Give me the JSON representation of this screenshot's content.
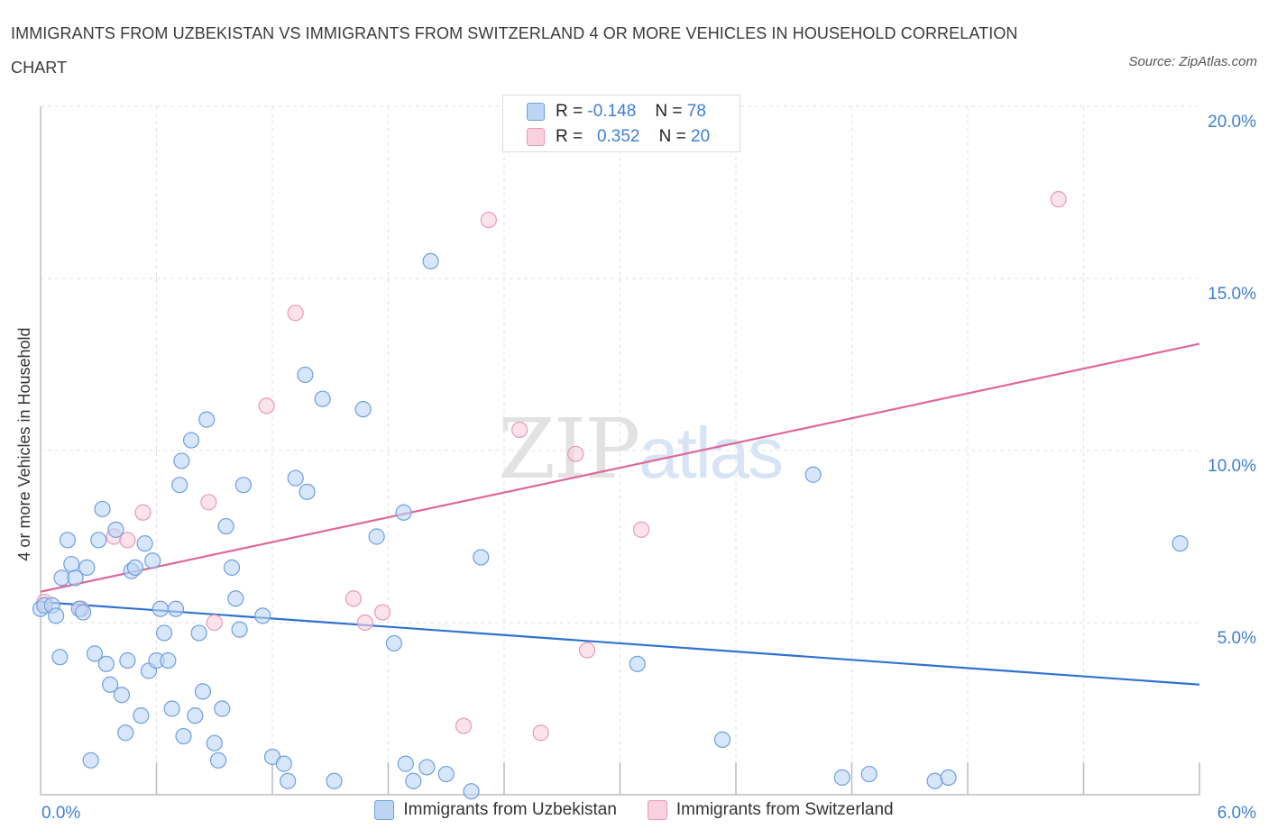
{
  "title": "IMMIGRANTS FROM UZBEKISTAN VS IMMIGRANTS FROM SWITZERLAND 4 OR MORE VEHICLES IN HOUSEHOLD CORRELATION CHART",
  "source": "Source: ZipAtlas.com",
  "watermark": {
    "zip": "ZIP",
    "atlas": "atlas"
  },
  "legend": {
    "rows": [
      {
        "r_label": "R =",
        "r_value": "-0.148",
        "n_label": "N =",
        "n_value": "78",
        "color": "#a9c9f0"
      },
      {
        "r_label": "R =",
        "r_value": "0.352",
        "n_label": "N =",
        "n_value": "20",
        "color": "#f5b8cb"
      }
    ]
  },
  "colors": {
    "uzbekistan_fill": "#bcd5f3",
    "uzbekistan_stroke": "#6f9fe0",
    "uzbekistan_line": "#2f72d0",
    "switzerland_fill": "#f9d0dd",
    "switzerland_stroke": "#e99ab4",
    "switzerland_line": "#e0679a",
    "axis_label": "#3d7fd6",
    "grid": "#e2e2e2"
  },
  "chart_data": {
    "type": "scatter",
    "title": "IMMIGRANTS FROM UZBEKISTAN VS IMMIGRANTS FROM SWITZERLAND 4 OR MORE VEHICLES IN HOUSEHOLD CORRELATION CHART",
    "xlabel": "",
    "ylabel": "4 or more Vehicles in Household",
    "xlim": [
      0,
      6
    ],
    "ylim": [
      0,
      20
    ],
    "x_tick_labels": [
      {
        "value": 0,
        "label": "0.0%"
      },
      {
        "value": 6,
        "label": "6.0%"
      }
    ],
    "y_tick_labels": [
      {
        "value": 5,
        "label": "5.0%"
      },
      {
        "value": 10,
        "label": "10.0%"
      },
      {
        "value": 15,
        "label": "15.0%"
      },
      {
        "value": 20,
        "label": "20.0%"
      }
    ],
    "grid": true,
    "legend_position": "bottom",
    "series": [
      {
        "name": "Immigrants from Uzbekistan",
        "points": [
          [
            0.0,
            5.4
          ],
          [
            0.02,
            5.5
          ],
          [
            0.06,
            5.5
          ],
          [
            0.08,
            5.2
          ],
          [
            0.1,
            4.0
          ],
          [
            0.11,
            6.3
          ],
          [
            0.14,
            7.4
          ],
          [
            0.16,
            6.7
          ],
          [
            0.18,
            6.3
          ],
          [
            0.2,
            5.4
          ],
          [
            0.22,
            5.3
          ],
          [
            0.24,
            6.6
          ],
          [
            0.26,
            1.0
          ],
          [
            0.28,
            4.1
          ],
          [
            0.3,
            7.4
          ],
          [
            0.32,
            8.3
          ],
          [
            0.34,
            3.8
          ],
          [
            0.36,
            3.2
          ],
          [
            0.39,
            7.7
          ],
          [
            0.42,
            2.9
          ],
          [
            0.44,
            1.8
          ],
          [
            0.45,
            3.9
          ],
          [
            0.47,
            6.5
          ],
          [
            0.49,
            6.6
          ],
          [
            0.52,
            2.3
          ],
          [
            0.54,
            7.3
          ],
          [
            0.56,
            3.6
          ],
          [
            0.58,
            6.8
          ],
          [
            0.6,
            3.9
          ],
          [
            0.62,
            5.4
          ],
          [
            0.64,
            4.7
          ],
          [
            0.66,
            3.9
          ],
          [
            0.68,
            2.5
          ],
          [
            0.7,
            5.4
          ],
          [
            0.72,
            9.0
          ],
          [
            0.73,
            9.7
          ],
          [
            0.74,
            1.7
          ],
          [
            0.78,
            10.3
          ],
          [
            0.8,
            2.3
          ],
          [
            0.82,
            4.7
          ],
          [
            0.84,
            3.0
          ],
          [
            0.86,
            10.9
          ],
          [
            0.9,
            1.5
          ],
          [
            0.92,
            1.0
          ],
          [
            0.94,
            2.5
          ],
          [
            0.96,
            7.8
          ],
          [
            0.99,
            6.6
          ],
          [
            1.01,
            5.7
          ],
          [
            1.03,
            4.8
          ],
          [
            1.05,
            9.0
          ],
          [
            1.15,
            5.2
          ],
          [
            1.2,
            1.1
          ],
          [
            1.26,
            0.9
          ],
          [
            1.28,
            0.4
          ],
          [
            1.32,
            9.2
          ],
          [
            1.37,
            12.2
          ],
          [
            1.38,
            8.8
          ],
          [
            1.46,
            11.5
          ],
          [
            1.52,
            0.4
          ],
          [
            1.67,
            11.2
          ],
          [
            1.74,
            7.5
          ],
          [
            1.83,
            4.4
          ],
          [
            1.88,
            8.2
          ],
          [
            1.89,
            0.9
          ],
          [
            1.93,
            0.4
          ],
          [
            2.0,
            0.8
          ],
          [
            2.02,
            15.5
          ],
          [
            2.1,
            0.6
          ],
          [
            2.23,
            0.1
          ],
          [
            2.28,
            6.9
          ],
          [
            3.09,
            3.8
          ],
          [
            3.53,
            1.6
          ],
          [
            4.0,
            9.3
          ],
          [
            4.15,
            0.5
          ],
          [
            4.29,
            0.6
          ],
          [
            4.63,
            0.4
          ],
          [
            4.7,
            0.5
          ],
          [
            5.9,
            7.3
          ]
        ],
        "trend": {
          "x": [
            0,
            6
          ],
          "y": [
            5.6,
            3.2
          ]
        }
      },
      {
        "name": "Immigrants from Switzerland",
        "points": [
          [
            0.02,
            5.6
          ],
          [
            0.21,
            5.4
          ],
          [
            0.38,
            7.5
          ],
          [
            0.53,
            8.2
          ],
          [
            0.87,
            8.5
          ],
          [
            0.9,
            5.0
          ],
          [
            1.17,
            11.3
          ],
          [
            1.32,
            14.0
          ],
          [
            1.62,
            5.7
          ],
          [
            1.68,
            5.0
          ],
          [
            1.77,
            5.3
          ],
          [
            2.19,
            2.0
          ],
          [
            2.32,
            16.7
          ],
          [
            2.48,
            10.6
          ],
          [
            2.59,
            1.8
          ],
          [
            2.77,
            9.9
          ],
          [
            2.83,
            4.2
          ],
          [
            3.11,
            7.7
          ],
          [
            5.27,
            17.3
          ],
          [
            0.45,
            7.4
          ]
        ],
        "trend": {
          "x": [
            0,
            6
          ],
          "y": [
            5.9,
            13.1
          ]
        }
      }
    ]
  }
}
